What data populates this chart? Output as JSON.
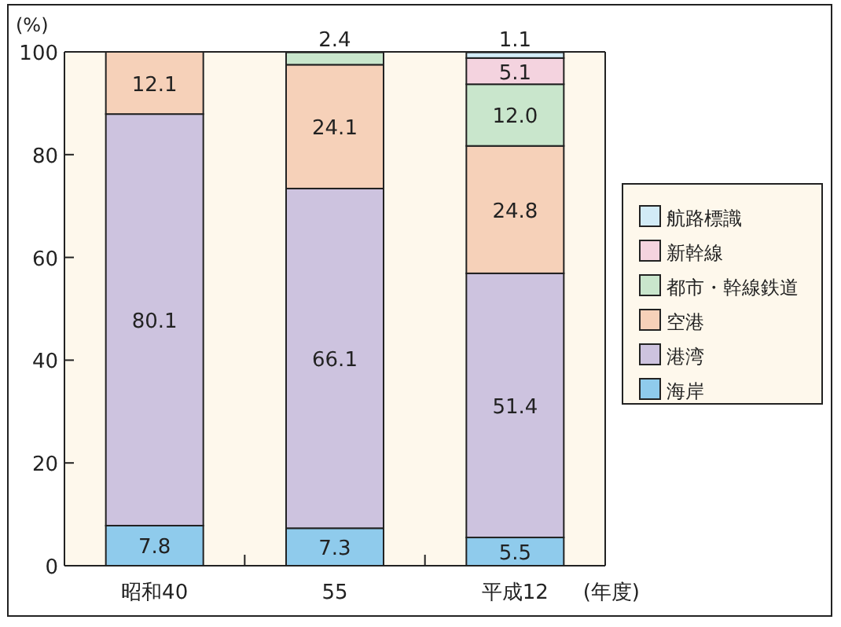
{
  "chart_data": {
    "type": "bar",
    "stacked": true,
    "ylabel": "(%)",
    "xlabel": "(年度)",
    "categories": [
      "昭和40",
      "55",
      "平成12"
    ],
    "series": [
      {
        "name": "海岸",
        "color": "#8fcbec",
        "values": [
          7.8,
          7.3,
          5.5
        ],
        "value_labels": [
          "7.8",
          "7.3",
          "5.5"
        ]
      },
      {
        "name": "港湾",
        "color": "#cdc3df",
        "values": [
          80.1,
          66.1,
          51.4
        ],
        "value_labels": [
          "80.1",
          "66.1",
          "51.4"
        ]
      },
      {
        "name": "空港",
        "color": "#f6d1b9",
        "values": [
          12.1,
          24.1,
          24.8
        ],
        "value_labels": [
          "12.1",
          "24.1",
          "24.8"
        ]
      },
      {
        "name": "都市・幹線鉄道",
        "color": "#c9e6cc",
        "values": [
          null,
          2.4,
          12.0
        ],
        "value_labels": [
          null,
          "2.4",
          "12.0"
        ]
      },
      {
        "name": "新幹線",
        "color": "#f4d3df",
        "values": [
          null,
          null,
          5.1
        ],
        "value_labels": [
          null,
          null,
          "5.1"
        ]
      },
      {
        "name": "航路標識",
        "color": "#d2ebf6",
        "values": [
          null,
          null,
          1.1
        ],
        "value_labels": [
          null,
          null,
          "1.1"
        ]
      }
    ],
    "ylim": [
      0,
      100
    ],
    "yticks": [
      0,
      20,
      40,
      60,
      80,
      100
    ],
    "legend": "right"
  }
}
